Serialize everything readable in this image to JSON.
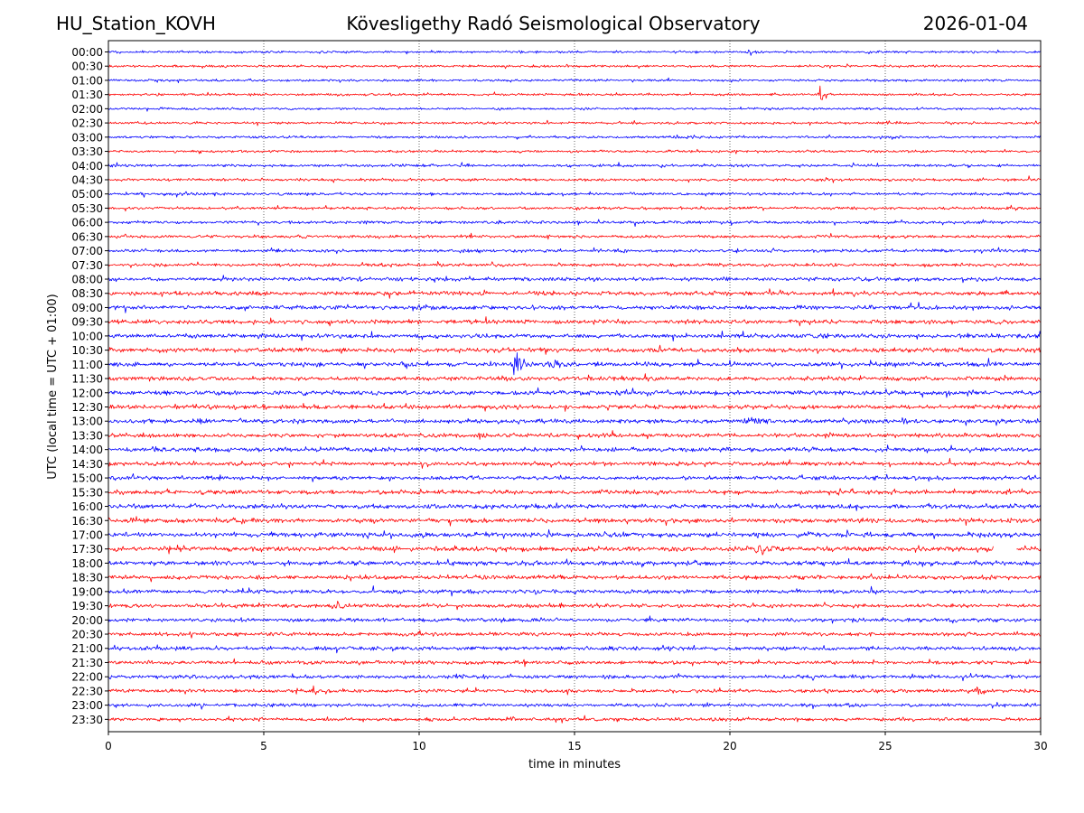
{
  "header": {
    "station": "HU_Station_KOVH",
    "title": "Kövesligethy Radó Seismological Observatory",
    "date": "2026-01-04"
  },
  "chart_data": {
    "type": "line",
    "title": "Kövesligethy Radó Seismological Observatory",
    "xlabel": "time in minutes",
    "ylabel": "UTC (local time = UTC + 01:00)",
    "xlim": [
      0,
      30
    ],
    "xticks": [
      0,
      5,
      10,
      15,
      20,
      25,
      30
    ],
    "grid": "vertical dotted at x ticks",
    "series_colors": [
      "#0000ff",
      "#ff0000"
    ],
    "rows": [
      "00:00",
      "00:30",
      "01:00",
      "01:30",
      "02:00",
      "02:30",
      "03:00",
      "03:30",
      "04:00",
      "04:30",
      "05:00",
      "05:30",
      "06:00",
      "06:30",
      "07:00",
      "07:30",
      "08:00",
      "08:30",
      "09:00",
      "09:30",
      "10:00",
      "10:30",
      "11:00",
      "11:30",
      "12:00",
      "12:30",
      "13:00",
      "13:30",
      "14:00",
      "14:30",
      "15:00",
      "15:30",
      "16:00",
      "16:30",
      "17:00",
      "17:30",
      "18:00",
      "18:30",
      "19:00",
      "19:30",
      "20:00",
      "20:30",
      "21:00",
      "21:30",
      "22:00",
      "22:30",
      "23:00",
      "23:30"
    ],
    "row_noise": [
      0.5,
      0.5,
      0.5,
      0.5,
      0.5,
      0.5,
      0.55,
      0.55,
      0.6,
      0.6,
      0.6,
      0.6,
      0.65,
      0.65,
      0.7,
      0.7,
      0.8,
      0.85,
      0.9,
      0.9,
      0.9,
      0.95,
      0.95,
      0.9,
      0.95,
      0.9,
      0.9,
      0.9,
      0.9,
      0.85,
      0.85,
      0.9,
      0.95,
      0.95,
      1.0,
      1.0,
      0.95,
      0.9,
      0.8,
      0.8,
      0.8,
      0.8,
      0.85,
      0.8,
      0.8,
      0.75,
      0.7,
      0.7
    ],
    "events": [
      {
        "row": "00:00",
        "start": 20.5,
        "end": 21.3,
        "amp": 5
      },
      {
        "row": "01:30",
        "start": 22.8,
        "end": 23.5,
        "amp": 7
      },
      {
        "row": "11:00",
        "start": 12.9,
        "end": 13.8,
        "amp": 14
      },
      {
        "row": "11:00",
        "start": 13.8,
        "end": 16.5,
        "amp": 5
      },
      {
        "row": "13:00",
        "start": 20.2,
        "end": 22.5,
        "amp": 5
      },
      {
        "row": "13:00",
        "start": 25.5,
        "end": 26.0,
        "amp": 5
      },
      {
        "row": "17:30",
        "start": 20.5,
        "end": 24.0,
        "amp": 5
      },
      {
        "row": "19:30",
        "start": 7.0,
        "end": 8.5,
        "amp": 5
      },
      {
        "row": "20:00",
        "start": 12.6,
        "end": 13.4,
        "amp": 5
      },
      {
        "row": "22:30",
        "start": 27.8,
        "end": 28.5,
        "amp": 8
      },
      {
        "row": "23:30",
        "start": 12.9,
        "end": 13.3,
        "amp": 5
      }
    ],
    "gaps": [
      {
        "row": "17:30",
        "start": 28.5,
        "end": 29.2
      }
    ]
  }
}
